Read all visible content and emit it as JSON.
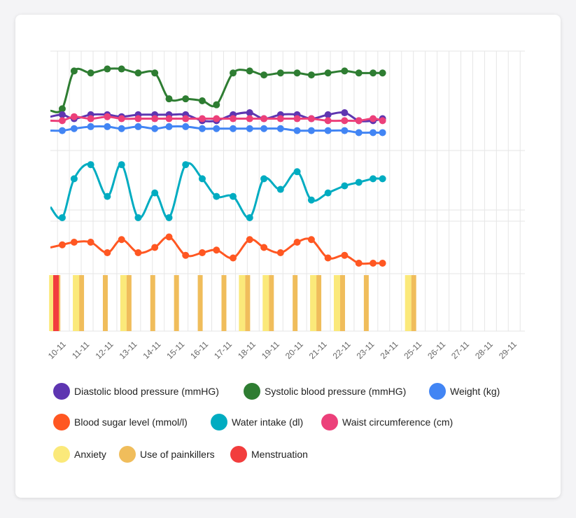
{
  "chart_data": {
    "type": "line",
    "categories": [
      "10-11",
      "11-11",
      "12-11",
      "13-11",
      "14-11",
      "15-11",
      "16-11",
      "17-11",
      "18-11",
      "19-11",
      "20-11",
      "21-11",
      "22-11",
      "23-11",
      "24-11",
      "25-11",
      "26-11",
      "27-11",
      "28-11",
      "29-11"
    ],
    "x_range": [
      9.7,
      29.7
    ],
    "series": [
      {
        "key": "systolic",
        "name": "Systolic blood pressure (mmHG)",
        "color": "#2e7d32",
        "band": "top",
        "ylim": [
          100,
          150
        ],
        "points": [
          [
            9.7,
            120
          ],
          [
            10.2,
            121
          ],
          [
            10.7,
            140
          ],
          [
            11.4,
            139
          ],
          [
            12.1,
            141
          ],
          [
            12.7,
            141
          ],
          [
            13.4,
            139
          ],
          [
            14.1,
            139
          ],
          [
            14.7,
            126
          ],
          [
            15.4,
            126
          ],
          [
            16.1,
            125
          ],
          [
            16.7,
            123
          ],
          [
            17.4,
            139
          ],
          [
            18.1,
            140
          ],
          [
            18.7,
            138
          ],
          [
            19.4,
            139
          ],
          [
            20.1,
            139
          ],
          [
            20.7,
            138
          ],
          [
            21.4,
            139
          ],
          [
            22.1,
            140
          ],
          [
            22.7,
            139
          ],
          [
            23.3,
            139
          ],
          [
            23.7,
            139
          ]
        ]
      },
      {
        "key": "diastolic",
        "name": "Diastolic blood pressure (mmHG)",
        "color": "#5e35b1",
        "band": "top",
        "ylim": [
          100,
          150
        ],
        "points": [
          [
            9.7,
            117
          ],
          [
            10.2,
            118
          ],
          [
            10.7,
            116
          ],
          [
            11.4,
            118
          ],
          [
            12.1,
            118
          ],
          [
            12.7,
            117
          ],
          [
            13.4,
            118
          ],
          [
            14.1,
            118
          ],
          [
            14.7,
            118
          ],
          [
            15.4,
            118
          ],
          [
            16.1,
            115
          ],
          [
            16.7,
            115
          ],
          [
            17.4,
            118
          ],
          [
            18.1,
            119
          ],
          [
            18.7,
            116
          ],
          [
            19.4,
            118
          ],
          [
            20.1,
            118
          ],
          [
            20.7,
            116
          ],
          [
            21.4,
            118
          ],
          [
            22.1,
            119
          ],
          [
            22.7,
            115
          ],
          [
            23.3,
            115
          ],
          [
            23.7,
            116
          ]
        ]
      },
      {
        "key": "waist",
        "name": "Waist circumference (cm)",
        "color": "#ec407a",
        "band": "top",
        "ylim": [
          100,
          150
        ],
        "points": [
          [
            9.7,
            115
          ],
          [
            10.2,
            115
          ],
          [
            10.7,
            117
          ],
          [
            11.4,
            116
          ],
          [
            12.1,
            117
          ],
          [
            12.7,
            116
          ],
          [
            13.4,
            116
          ],
          [
            14.1,
            116
          ],
          [
            14.7,
            116
          ],
          [
            15.4,
            116
          ],
          [
            16.1,
            116
          ],
          [
            16.7,
            116
          ],
          [
            17.4,
            116
          ],
          [
            18.1,
            116
          ],
          [
            18.7,
            116
          ],
          [
            19.4,
            116
          ],
          [
            20.1,
            116
          ],
          [
            20.7,
            116
          ],
          [
            21.4,
            115
          ],
          [
            22.1,
            115
          ],
          [
            22.7,
            115
          ],
          [
            23.3,
            116
          ],
          [
            23.7,
            115
          ]
        ]
      },
      {
        "key": "weight",
        "name": "Weight (kg)",
        "color": "#4285f4",
        "band": "top",
        "ylim": [
          100,
          150
        ],
        "points": [
          [
            9.7,
            110
          ],
          [
            10.2,
            110
          ],
          [
            10.7,
            111
          ],
          [
            11.4,
            112
          ],
          [
            12.1,
            112
          ],
          [
            12.7,
            111
          ],
          [
            13.4,
            112
          ],
          [
            14.1,
            111
          ],
          [
            14.7,
            112
          ],
          [
            15.4,
            112
          ],
          [
            16.1,
            111
          ],
          [
            16.7,
            111
          ],
          [
            17.4,
            111
          ],
          [
            18.1,
            111
          ],
          [
            18.7,
            111
          ],
          [
            19.4,
            111
          ],
          [
            20.1,
            110
          ],
          [
            20.7,
            110
          ],
          [
            21.4,
            110
          ],
          [
            22.1,
            110
          ],
          [
            22.7,
            109
          ],
          [
            23.3,
            109
          ],
          [
            23.7,
            109
          ]
        ]
      },
      {
        "key": "water",
        "name": "Water intake (dl)",
        "color": "#00acc1",
        "band": "mid",
        "ylim": [
          0,
          10
        ],
        "points": [
          [
            9.7,
            2
          ],
          [
            10.2,
            0.5
          ],
          [
            10.7,
            6
          ],
          [
            11.4,
            8
          ],
          [
            12.1,
            3.5
          ],
          [
            12.7,
            8
          ],
          [
            13.4,
            0.5
          ],
          [
            14.1,
            4
          ],
          [
            14.7,
            0.5
          ],
          [
            15.4,
            8
          ],
          [
            16.1,
            6
          ],
          [
            16.7,
            3.5
          ],
          [
            17.4,
            3.5
          ],
          [
            18.1,
            0.5
          ],
          [
            18.7,
            6
          ],
          [
            19.4,
            4.5
          ],
          [
            20.1,
            7
          ],
          [
            20.7,
            3
          ],
          [
            21.4,
            4
          ],
          [
            22.1,
            5
          ],
          [
            22.7,
            5.5
          ],
          [
            23.3,
            6
          ],
          [
            23.7,
            6
          ]
        ]
      },
      {
        "key": "sugar",
        "name": "Blood sugar level (mmol/l)",
        "color": "#ff5722",
        "band": "low",
        "ylim": [
          0,
          10
        ],
        "points": [
          [
            9.7,
            5
          ],
          [
            10.2,
            5.5
          ],
          [
            10.7,
            6
          ],
          [
            11.4,
            6
          ],
          [
            12.1,
            4
          ],
          [
            12.7,
            6.5
          ],
          [
            13.4,
            4
          ],
          [
            14.1,
            5
          ],
          [
            14.7,
            7
          ],
          [
            15.4,
            3.5
          ],
          [
            16.1,
            4
          ],
          [
            16.7,
            4.5
          ],
          [
            17.4,
            3
          ],
          [
            18.1,
            6.5
          ],
          [
            18.7,
            5
          ],
          [
            19.4,
            4
          ],
          [
            20.1,
            6
          ],
          [
            20.7,
            6.5
          ],
          [
            21.4,
            3
          ],
          [
            22.1,
            3.5
          ],
          [
            22.7,
            2
          ],
          [
            23.3,
            2
          ],
          [
            23.7,
            2
          ]
        ]
      }
    ],
    "events": [
      {
        "name": "Anxiety",
        "color": "#fbe97a",
        "days": [
          10,
          11,
          13,
          18,
          19,
          21,
          22,
          25
        ]
      },
      {
        "name": "Use of painkillers",
        "color": "#f0bd5b",
        "days": [
          10,
          11,
          12,
          13,
          14,
          15,
          16,
          17,
          18,
          19,
          20,
          21,
          22,
          23,
          25
        ]
      },
      {
        "name": "Menstruation",
        "color": "#f23d3d",
        "days": [
          10
        ]
      }
    ],
    "legend_order": [
      "Diastolic blood pressure (mmHG)",
      "Systolic blood pressure (mmHG)",
      "Weight (kg)",
      "Blood sugar level (mmol/l)",
      "Water intake (dl)",
      "Waist circumference (cm)",
      "Anxiety",
      "Use of painkillers",
      "Menstruation"
    ],
    "xlabel": "",
    "ylabel": "",
    "grid": true,
    "legend_position": "bottom"
  },
  "legend": [
    {
      "label": "Diastolic blood pressure (mmHG)",
      "color": "#5e35b1"
    },
    {
      "label": "Systolic blood pressure (mmHG)",
      "color": "#2e7d32"
    },
    {
      "label": "Weight (kg)",
      "color": "#4285f4"
    },
    {
      "label": "Blood sugar level (mmol/l)",
      "color": "#ff5722"
    },
    {
      "label": "Water intake (dl)",
      "color": "#00acc1"
    },
    {
      "label": "Waist circumference (cm)",
      "color": "#ec407a"
    },
    {
      "label": "Anxiety",
      "color": "#fbe97a"
    },
    {
      "label": "Use of painkillers",
      "color": "#f0bd5b"
    },
    {
      "label": "Menstruation",
      "color": "#f23d3d"
    }
  ]
}
